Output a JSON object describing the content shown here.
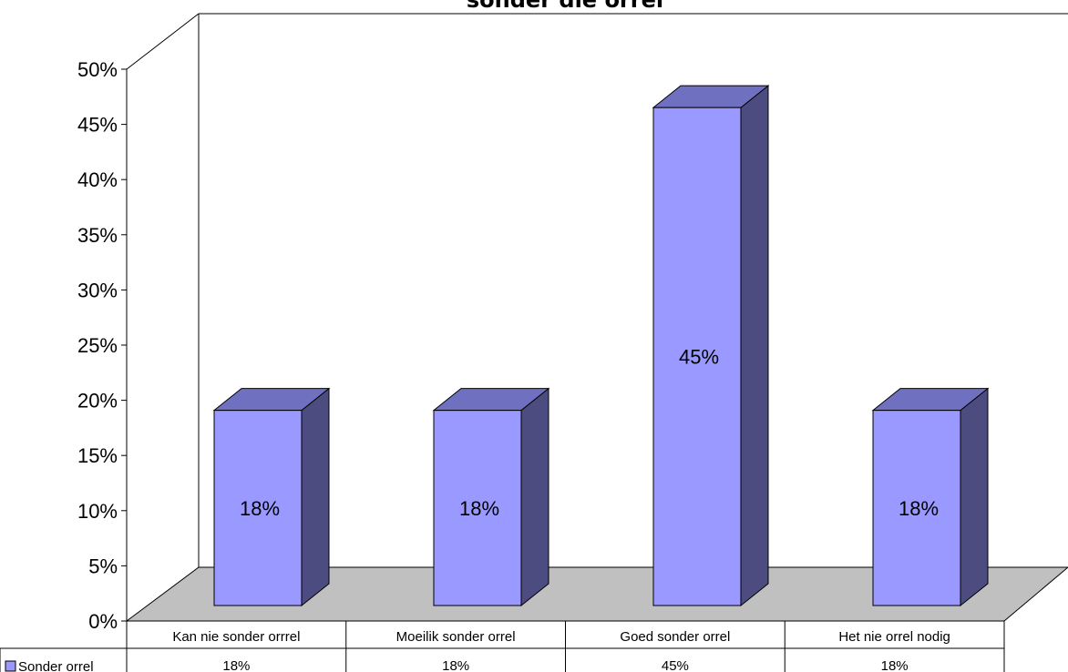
{
  "chart_data": {
    "type": "bar",
    "title": "sonder die orrel",
    "categories": [
      "Kan nie sonder orrrel",
      "Moeilik sonder orrel",
      "Goed sonder orrel",
      "Het nie orrel nodig"
    ],
    "series": [
      {
        "name": "Sonder orrel",
        "values": [
          18,
          18,
          45,
          18
        ],
        "labels": [
          "18%",
          "18%",
          "45%",
          "18%"
        ]
      }
    ],
    "ylim": [
      0,
      50
    ],
    "yticks": [
      0,
      5,
      10,
      15,
      20,
      25,
      30,
      35,
      40,
      45,
      50
    ],
    "ytick_labels": [
      "0%",
      "5%",
      "10%",
      "15%",
      "20%",
      "25%",
      "30%",
      "35%",
      "40%",
      "45%",
      "50%"
    ],
    "legend_position": "bottom-left",
    "data_table": true,
    "three_d": true,
    "colors": {
      "bar_front": "#9999ff",
      "bar_top": "#7070c0",
      "bar_side": "#4c4c80",
      "floor": "#c0c0c0"
    }
  }
}
